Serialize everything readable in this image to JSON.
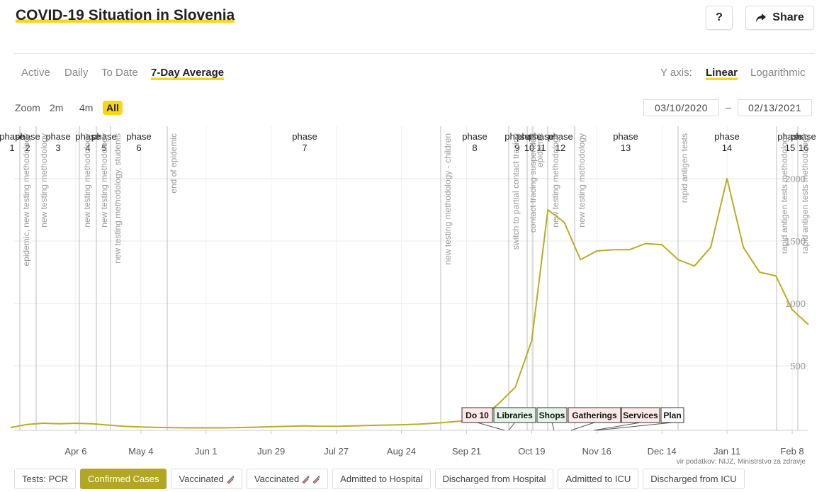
{
  "header": {
    "title": "COVID-19 Situation in Slovenia",
    "help": "?",
    "share": "Share"
  },
  "tabs": {
    "items": [
      "Active",
      "Daily",
      "To Date",
      "7-Day Average"
    ],
    "selected": 3
  },
  "y_axis": {
    "label": "Y axis:",
    "options": [
      "Linear",
      "Logarithmic"
    ],
    "selected": 0
  },
  "zoom": {
    "label": "Zoom",
    "options": [
      "2m",
      "4m",
      "All"
    ],
    "selected": 2
  },
  "date_range": {
    "from": "03/10/2020",
    "separator": "–",
    "to": "02/13/2021"
  },
  "chart_data": {
    "type": "line",
    "categories": [
      null,
      null,
      null,
      null,
      "Apr 6",
      null,
      null,
      null,
      "May 4",
      null,
      null,
      null,
      "Jun 1",
      null,
      null,
      null,
      "Jun 29",
      null,
      null,
      null,
      "Jul 27",
      null,
      null,
      null,
      "Aug 24",
      null,
      null,
      null,
      "Sep 21",
      null,
      null,
      null,
      "Oct 19",
      null,
      null,
      null,
      "Nov 16",
      null,
      null,
      null,
      "Dec 14",
      null,
      null,
      null,
      "Jan 11",
      null,
      null,
      null,
      "Feb 8",
      null
    ],
    "series": [
      {
        "color": "#b5ae24",
        "values": [
          5,
          30,
          40,
          35,
          40,
          35,
          25,
          15,
          10,
          6,
          4,
          3,
          3,
          3,
          5,
          8,
          12,
          15,
          18,
          16,
          15,
          18,
          22,
          25,
          28,
          32,
          40,
          50,
          60,
          90,
          200,
          330,
          700,
          1750,
          1650,
          1350,
          1420,
          1430,
          1430,
          1480,
          1470,
          1350,
          1300,
          1450,
          2000,
          1450,
          1250,
          1220,
          950,
          830
        ]
      }
    ],
    "ylim": [
      0,
      2420
    ],
    "yticks": [
      500,
      1000,
      1500,
      2000
    ],
    "grid": true,
    "phases": [
      {
        "label": "phase",
        "number": "1"
      },
      {
        "label": "phase",
        "number": "2"
      },
      {
        "label": "phase",
        "number": "3"
      },
      {
        "label": "phase",
        "number": "4"
      },
      {
        "label": "phase",
        "number": "5"
      },
      {
        "label": "phase",
        "number": "6"
      },
      {
        "label": "phase",
        "number": "7"
      },
      {
        "label": "phase",
        "number": "8"
      },
      {
        "label": "phase",
        "number": "9"
      },
      {
        "label": "phase",
        "number": "10"
      },
      {
        "label": "phase",
        "number": "11"
      },
      {
        "label": "phase",
        "number": "12"
      },
      {
        "label": "phase",
        "number": "13"
      },
      {
        "label": "phase",
        "number": "14"
      },
      {
        "label": "phase",
        "number": "15"
      },
      {
        "label": "phase",
        "number": "16"
      }
    ],
    "annotations": [
      "epidemic, new testing methodology",
      "new testing methodology",
      "new testing methodology",
      "new testing methodology",
      "new testing methodology, students",
      "end of epidemic",
      "new testing methodology - children",
      "switch to partial contact tracing",
      "contact tracing suspended",
      "epidemic",
      "new testing methodology",
      "new testing methodology",
      "rapid antigen tests",
      "rapid antigen tests methodology",
      "rapid antigen tests methodology"
    ],
    "events": [
      "Do 10",
      "Libraries",
      "Shops",
      "Gatherings",
      "Services",
      "Plan"
    ],
    "source": "vir podatkov: NIJZ, Ministrstvo za zdravje"
  },
  "series_buttons": {
    "items": [
      "Tests: PCR",
      "Confirmed Cases",
      "Vaccinated",
      "Vaccinated",
      "Admitted to Hospital",
      "Discharged from Hospital",
      "Admitted to ICU",
      "Discharged from ICU"
    ],
    "selected": 1
  }
}
